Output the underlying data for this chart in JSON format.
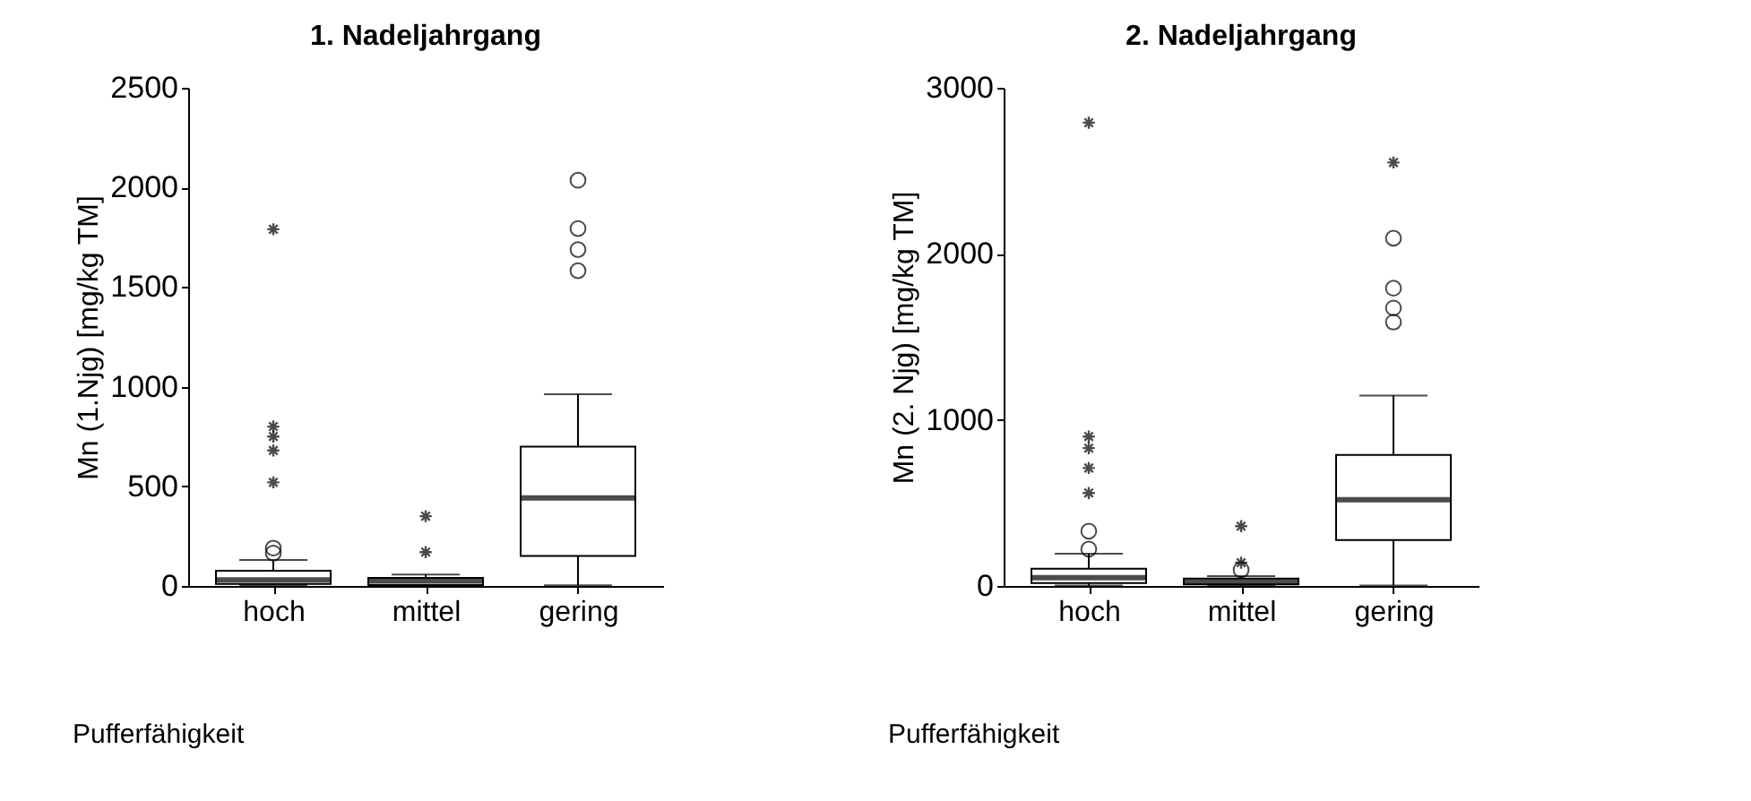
{
  "chart_data": [
    {
      "type": "box",
      "title": "1. Nadeljahrgang",
      "xlabel": "Pufferfähigkeit",
      "ylabel": "Mn (1.Njg) [mg/kg TM]",
      "categories": [
        "hoch",
        "mittel",
        "gering"
      ],
      "ylim": [
        0,
        2500
      ],
      "yticks": [
        0,
        500,
        1000,
        1500,
        2000,
        2500
      ],
      "grid": false,
      "boxes": [
        {
          "low": 5,
          "q1": 10,
          "median": 30,
          "q3": 76,
          "high": 130,
          "outliers": [
            190,
            165
          ]
        },
        {
          "low": 3,
          "q1": 5,
          "median": 25,
          "q3": 40,
          "high": 57
        },
        {
          "low": 3,
          "q1": 151,
          "median": 442,
          "q3": 699,
          "high": 962,
          "outliers": [
            2036,
            1794,
            1688,
            1582
          ]
        }
      ],
      "series": [
        {
          "type": "scatter",
          "marker": "cross",
          "color": "#000000",
          "x": [
            "hoch",
            "hoch",
            "hoch",
            "hoch",
            "hoch",
            "mittel",
            "mittel"
          ],
          "values": [
            1790,
            800,
            750,
            680,
            520,
            350,
            170
          ]
        }
      ]
    },
    {
      "type": "box",
      "title": "2. Nadeljahrgang",
      "xlabel": "Pufferfähigkeit",
      "ylabel": "Mn (2. Njg) [mg/kg TM]",
      "categories": [
        "hoch",
        "mittel",
        "gering"
      ],
      "ylim": [
        0,
        3000
      ],
      "yticks": [
        0,
        1000,
        2000,
        3000
      ],
      "grid": false,
      "boxes": [
        {
          "low": 3,
          "q1": 18,
          "median": 50,
          "q3": 104,
          "high": 194,
          "outliers": [
            330,
            222
          ]
        },
        {
          "low": 3,
          "q1": 10,
          "median": 25,
          "q3": 45,
          "high": 60,
          "outliers": [
            97
          ]
        },
        {
          "low": 3,
          "q1": 276,
          "median": 520,
          "q3": 789,
          "high": 1147,
          "outliers": [
            2094,
            1793,
            1674,
            1589
          ]
        }
      ],
      "series": [
        {
          "type": "scatter",
          "marker": "cross",
          "color": "#000000",
          "x": [
            "hoch",
            "hoch",
            "hoch",
            "hoch",
            "hoch",
            "mittel",
            "mittel",
            "gering"
          ],
          "values": [
            2790,
            900,
            830,
            710,
            560,
            360,
            140,
            2550
          ]
        }
      ]
    }
  ]
}
